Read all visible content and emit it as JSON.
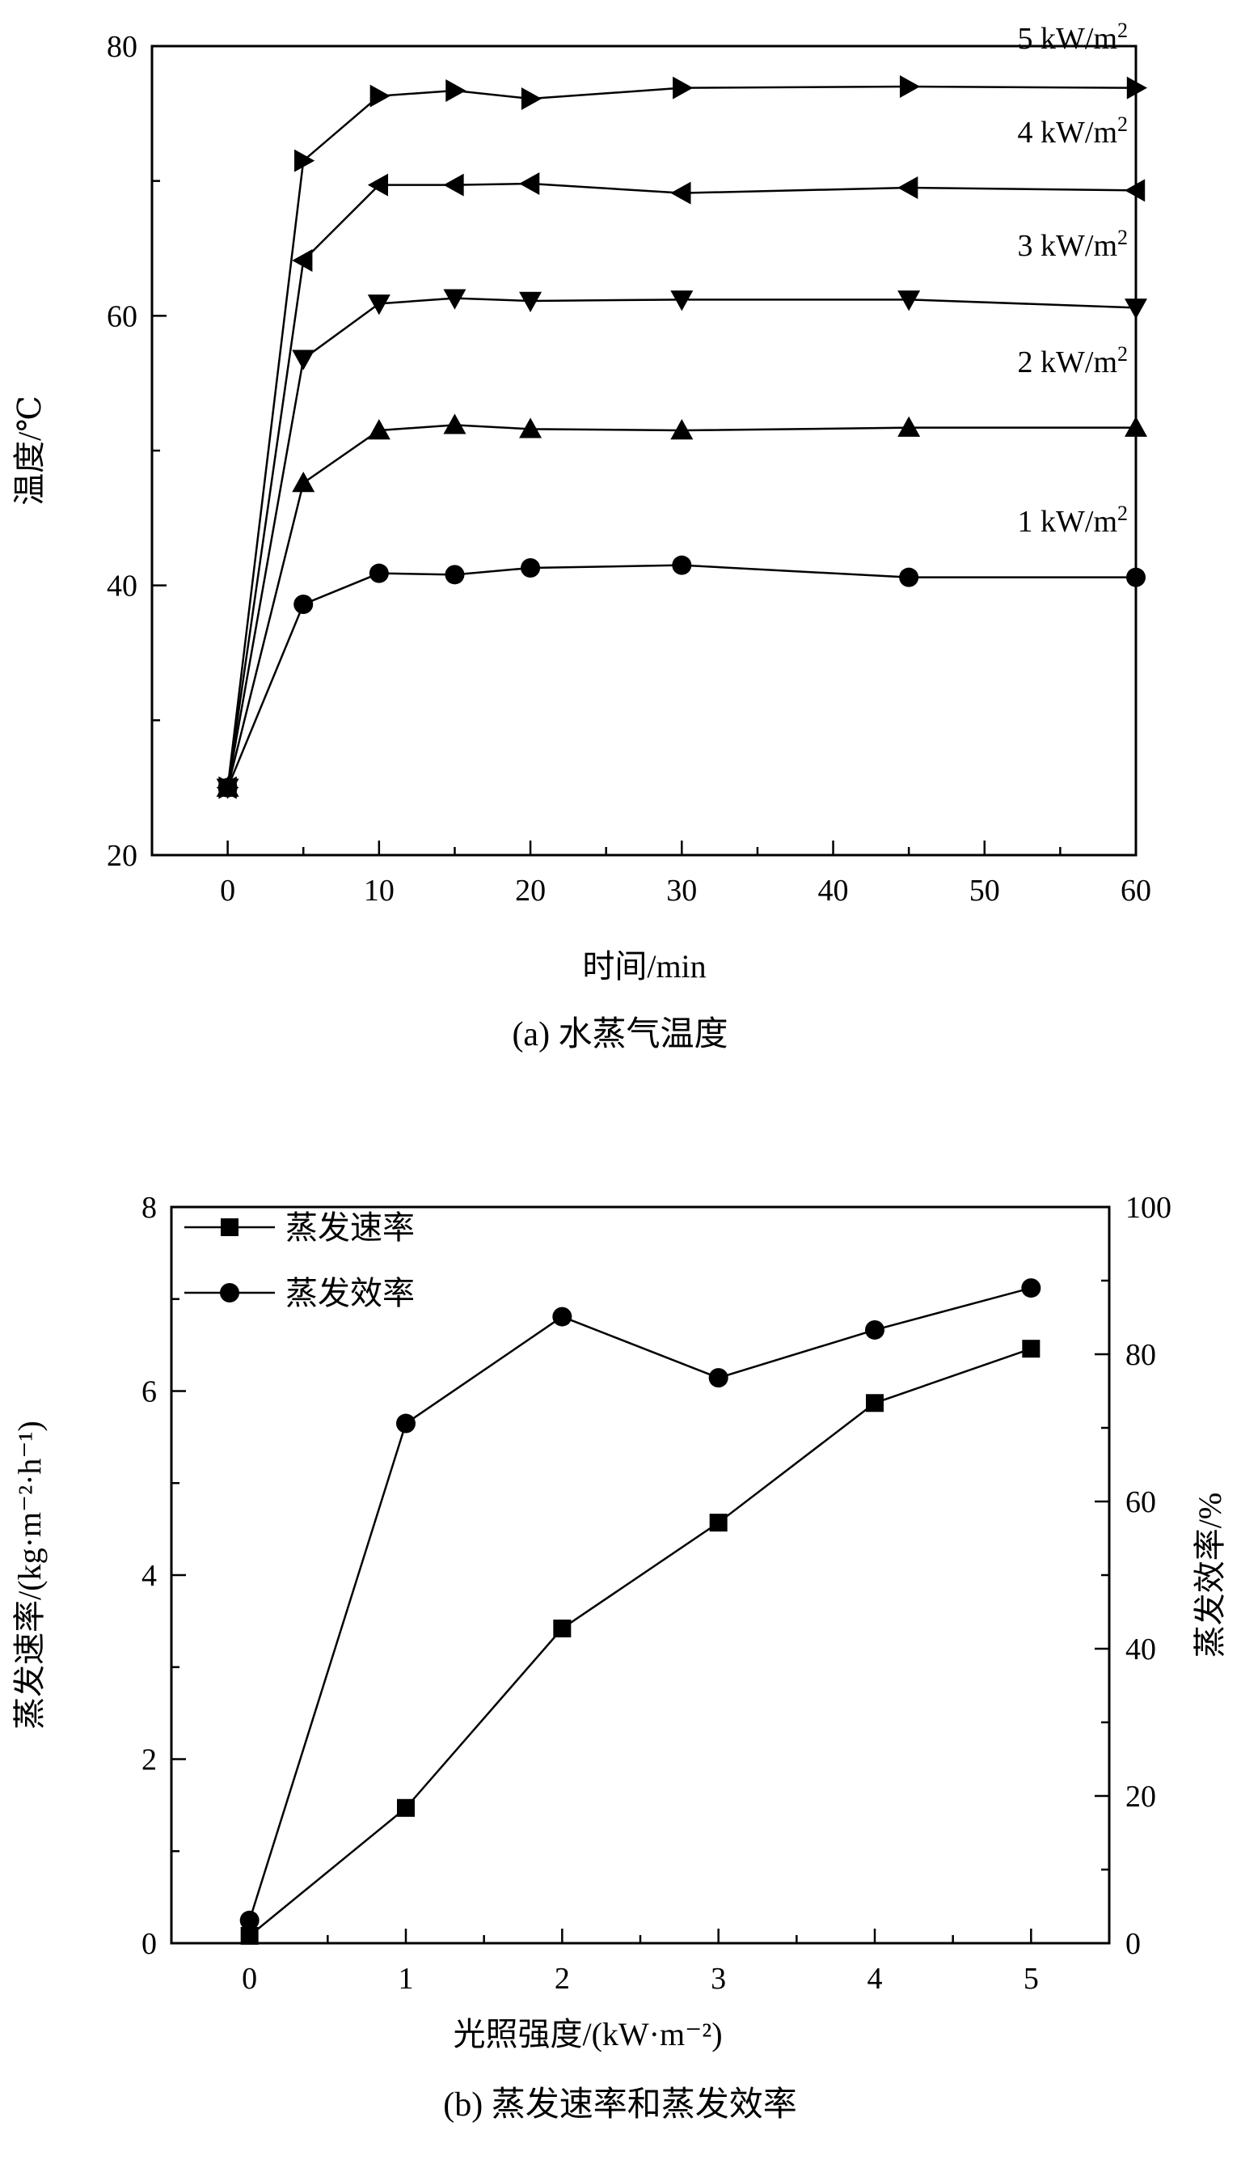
{
  "chart_data": [
    {
      "type": "line",
      "caption": "(a) 水蒸气温度",
      "xlabel": "时间/min",
      "ylabel": "温度/℃",
      "xlim": [
        -5,
        60
      ],
      "ylim": [
        20,
        80
      ],
      "xticks": [
        0,
        10,
        20,
        30,
        40,
        50,
        60
      ],
      "yticks": [
        20,
        40,
        60,
        80
      ],
      "x": [
        0,
        5,
        10,
        15,
        20,
        30,
        45,
        60
      ],
      "series": [
        {
          "name": "1 kW/m²",
          "label_base": "1 kW/m",
          "label_sup": "2",
          "marker": "circle",
          "values": [
            25,
            38.6,
            40.9,
            40.8,
            41.3,
            41.5,
            40.6,
            40.6
          ]
        },
        {
          "name": "2 kW/m²",
          "label_base": "2 kW/m",
          "label_sup": "2",
          "marker": "triangle-up",
          "values": [
            25,
            47.6,
            51.5,
            51.9,
            51.6,
            51.5,
            51.7,
            51.7
          ]
        },
        {
          "name": "3 kW/m²",
          "label_base": "3 kW/m",
          "label_sup": "2",
          "marker": "triangle-down",
          "values": [
            25,
            56.8,
            60.9,
            61.3,
            61.1,
            61.2,
            61.2,
            60.6
          ]
        },
        {
          "name": "4 kW/m²",
          "label_base": "4 kW/m",
          "label_sup": "2",
          "marker": "triangle-left",
          "values": [
            25,
            64.1,
            69.7,
            69.7,
            69.8,
            69.1,
            69.5,
            69.3
          ]
        },
        {
          "name": "5 kW/m²",
          "label_base": "5 kW/m",
          "label_sup": "2",
          "marker": "triangle-right",
          "values": [
            25,
            71.5,
            76.3,
            76.7,
            76.1,
            76.9,
            77.0,
            76.9
          ]
        }
      ]
    },
    {
      "type": "line",
      "caption": "(b) 蒸发速率和蒸发效率",
      "xlabel": "光照强度/(kW·m⁻²)",
      "ylabel_left": "蒸发速率/(kg·m⁻²·h⁻¹)",
      "ylabel_right": "蒸发效率/%",
      "xlim": [
        -0.5,
        5.5
      ],
      "ylim_left": [
        0,
        8
      ],
      "ylim_right": [
        0,
        100
      ],
      "xticks": [
        0,
        1,
        2,
        3,
        4,
        5
      ],
      "yticks_left": [
        0,
        2,
        4,
        6,
        8
      ],
      "yticks_right": [
        0,
        20,
        40,
        60,
        80,
        100
      ],
      "x": [
        0,
        1,
        2,
        3,
        4,
        5
      ],
      "legend_position": "top-left",
      "series": [
        {
          "name": "蒸发速率",
          "marker": "square",
          "axis": "left",
          "values": [
            0.08,
            1.47,
            3.42,
            4.57,
            5.87,
            6.46
          ]
        },
        {
          "name": "蒸发效率",
          "marker": "circle",
          "axis": "right",
          "values": [
            3.1,
            70.6,
            85.1,
            76.8,
            83.3,
            89.0
          ]
        }
      ]
    }
  ]
}
